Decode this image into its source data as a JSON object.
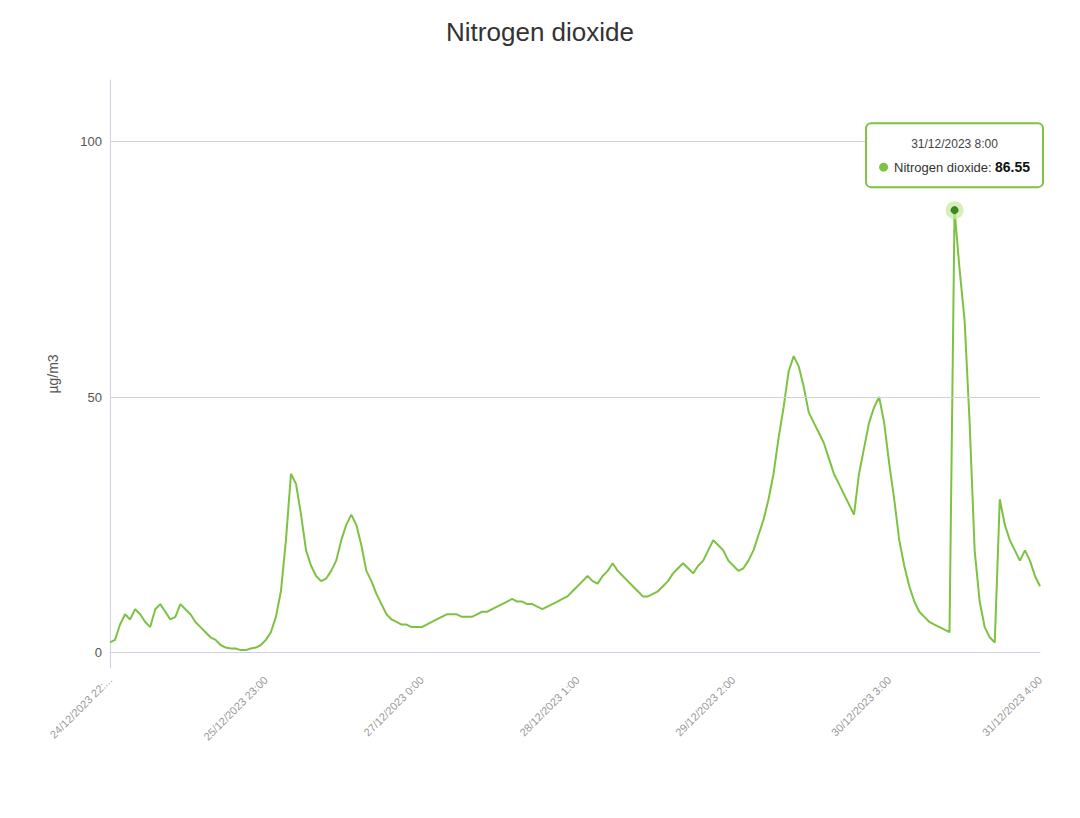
{
  "chart_data": {
    "type": "line",
    "title": "Nitrogen dioxide",
    "ylabel": "µg/m3",
    "color": "#7dc242",
    "grid": true,
    "ylim": [
      -3,
      112
    ],
    "yticks": [
      0,
      50,
      100
    ],
    "annotations": [
      {
        "text": "31/12/2023 8:00",
        "label": "Nitrogen dioxide:",
        "value": 86.55
      }
    ],
    "categories": [
      "24/12/2023 22:...",
      null,
      null,
      null,
      null,
      null,
      null,
      null,
      null,
      null,
      null,
      null,
      null,
      null,
      null,
      null,
      null,
      null,
      null,
      null,
      null,
      null,
      null,
      null,
      null,
      null,
      null,
      null,
      null,
      null,
      null,
      "25/12/2023 23:00",
      null,
      null,
      null,
      null,
      null,
      null,
      null,
      null,
      null,
      null,
      null,
      null,
      null,
      null,
      null,
      null,
      null,
      null,
      null,
      null,
      null,
      null,
      null,
      null,
      null,
      null,
      null,
      null,
      null,
      null,
      "27/12/2023 0:00",
      null,
      null,
      null,
      null,
      null,
      null,
      null,
      null,
      null,
      null,
      null,
      null,
      null,
      null,
      null,
      null,
      null,
      null,
      null,
      null,
      null,
      null,
      null,
      null,
      null,
      null,
      null,
      null,
      null,
      null,
      "28/12/2023 1:00",
      null,
      null,
      null,
      null,
      null,
      null,
      null,
      null,
      null,
      null,
      null,
      null,
      null,
      null,
      null,
      null,
      null,
      null,
      null,
      null,
      null,
      null,
      null,
      null,
      null,
      null,
      null,
      null,
      null,
      null,
      "29/12/2023 2:00",
      null,
      null,
      null,
      null,
      null,
      null,
      null,
      null,
      null,
      null,
      null,
      null,
      null,
      null,
      null,
      null,
      null,
      null,
      null,
      null,
      null,
      null,
      null,
      null,
      null,
      null,
      null,
      null,
      null,
      null,
      "30/12/2023 3:00",
      null,
      null,
      null,
      null,
      null,
      null,
      null,
      null,
      null,
      null,
      null,
      null,
      null,
      null,
      null,
      null,
      null,
      null,
      null,
      null,
      null,
      null,
      null,
      null,
      null,
      null,
      null,
      null,
      null,
      "31/12/2023 4:00"
    ],
    "values": [
      2.0,
      2.5,
      5.5,
      7.5,
      6.5,
      8.5,
      7.5,
      6.0,
      5.0,
      8.5,
      9.5,
      8.0,
      6.5,
      7.0,
      9.5,
      8.5,
      7.5,
      6.0,
      5.0,
      4.0,
      3.0,
      2.5,
      1.5,
      1.0,
      0.8,
      0.8,
      0.5,
      0.5,
      0.8,
      1.0,
      1.5,
      2.5,
      4.0,
      7.0,
      12.0,
      22.0,
      35.0,
      33.0,
      27.0,
      20.0,
      17.0,
      15.0,
      14.0,
      14.5,
      16.0,
      18.0,
      22.0,
      25.0,
      27.0,
      25.0,
      21.0,
      16.0,
      14.0,
      11.5,
      9.5,
      7.5,
      6.5,
      6.0,
      5.5,
      5.5,
      5.0,
      5.0,
      5.0,
      5.5,
      6.0,
      6.5,
      7.0,
      7.5,
      7.5,
      7.5,
      7.0,
      7.0,
      7.0,
      7.5,
      8.0,
      8.0,
      8.5,
      9.0,
      9.5,
      10.0,
      10.5,
      10.0,
      10.0,
      9.5,
      9.5,
      9.0,
      8.5,
      9.0,
      9.5,
      10.0,
      10.5,
      11.0,
      12.0,
      13.0,
      14.0,
      15.0,
      14.0,
      13.5,
      15.0,
      16.0,
      17.5,
      16.0,
      15.0,
      14.0,
      13.0,
      12.0,
      11.0,
      11.0,
      11.5,
      12.0,
      13.0,
      14.0,
      15.5,
      16.5,
      17.5,
      16.5,
      15.5,
      17.0,
      18.0,
      20.0,
      22.0,
      21.0,
      20.0,
      18.0,
      17.0,
      16.0,
      16.5,
      18.0,
      20.0,
      23.0,
      26.0,
      30.0,
      35.0,
      42.0,
      48.0,
      55.0,
      58.0,
      56.0,
      52.0,
      47.0,
      45.0,
      43.0,
      41.0,
      38.0,
      35.0,
      33.0,
      31.0,
      29.0,
      27.0,
      35.0,
      40.0,
      45.0,
      48.0,
      50.0,
      45.0,
      37.0,
      30.0,
      22.0,
      17.0,
      13.0,
      10.0,
      8.0,
      7.0,
      6.0,
      5.5,
      5.0,
      4.5,
      4.0,
      86.55,
      75.0,
      65.0,
      45.0,
      20.0,
      10.0,
      5.0,
      3.0,
      2.0,
      30.0,
      25.0,
      22.0,
      20.0,
      18.0,
      20.0,
      18.0,
      15.0,
      13.0
    ]
  }
}
